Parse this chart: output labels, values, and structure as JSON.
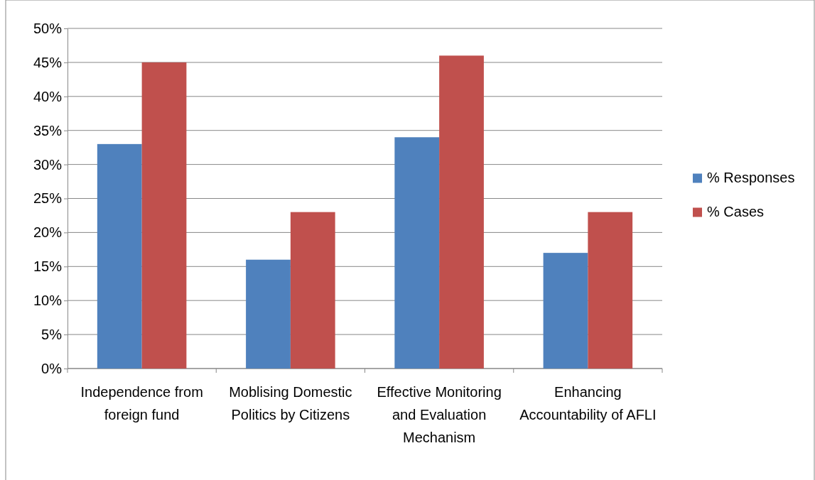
{
  "chart_data": {
    "type": "bar",
    "categories": [
      "Independence from foreign fund",
      "Moblising Domestic Politics by Citizens",
      "Effective Monitoring and Evaluation Mechanism",
      "Enhancing Accountability of AFLI"
    ],
    "series": [
      {
        "name": "% Responses",
        "color": "#4f81bd",
        "values": [
          33,
          16,
          34,
          17
        ]
      },
      {
        "name": "% Cases",
        "color": "#c0504d",
        "values": [
          45,
          23,
          46,
          23
        ]
      }
    ],
    "ylim": [
      0,
      50
    ],
    "yticks": [
      {
        "value": 0,
        "label": "0%"
      },
      {
        "value": 5,
        "label": "5%"
      },
      {
        "value": 10,
        "label": "10%"
      },
      {
        "value": 15,
        "label": "15%"
      },
      {
        "value": 20,
        "label": "20%"
      },
      {
        "value": 25,
        "label": "25%"
      },
      {
        "value": 30,
        "label": "30%"
      },
      {
        "value": 35,
        "label": "35%"
      },
      {
        "value": 40,
        "label": "40%"
      },
      {
        "value": 45,
        "label": "45%"
      },
      {
        "value": 50,
        "label": "50%"
      }
    ],
    "grid": "y",
    "legend": "right"
  }
}
